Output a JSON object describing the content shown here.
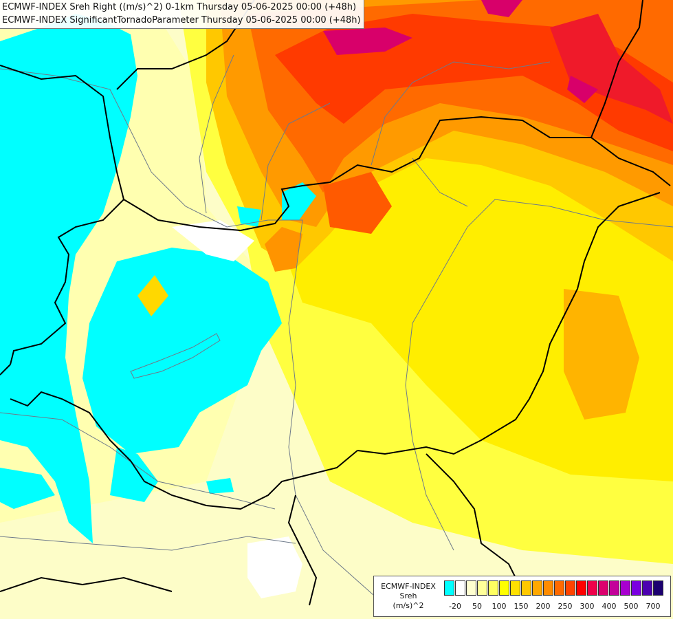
{
  "titles": {
    "line1": "ECMWF-INDEX Sreh Right ((m/s)^2) 0-1km Thursday 05-06-2025 00:00 (+48h)",
    "line2": "ECMWF-INDEX SignificantTornadoParameter Thursday 05-06-2025 00:00 (+48h)"
  },
  "legend": {
    "model": "ECMWF-INDEX",
    "parameter": "Sreh",
    "unit": "(m/s)^2",
    "colors": [
      "#00ffff",
      "#ffffff",
      "#ffffd0",
      "#ffff9a",
      "#ffff60",
      "#ffff00",
      "#ffe000",
      "#ffc800",
      "#ffa800",
      "#ff8c00",
      "#ff6a00",
      "#ff4400",
      "#ff0000",
      "#ef004a",
      "#db006e",
      "#c3009a",
      "#a800d0",
      "#7a00e0",
      "#4c00b0",
      "#1c0070"
    ],
    "ticks": [
      "-20",
      "50",
      "100",
      "150",
      "200",
      "250",
      "300",
      "400",
      "500",
      "700"
    ]
  },
  "colors": {
    "border": "#000000",
    "river": "#6e7a8a"
  }
}
